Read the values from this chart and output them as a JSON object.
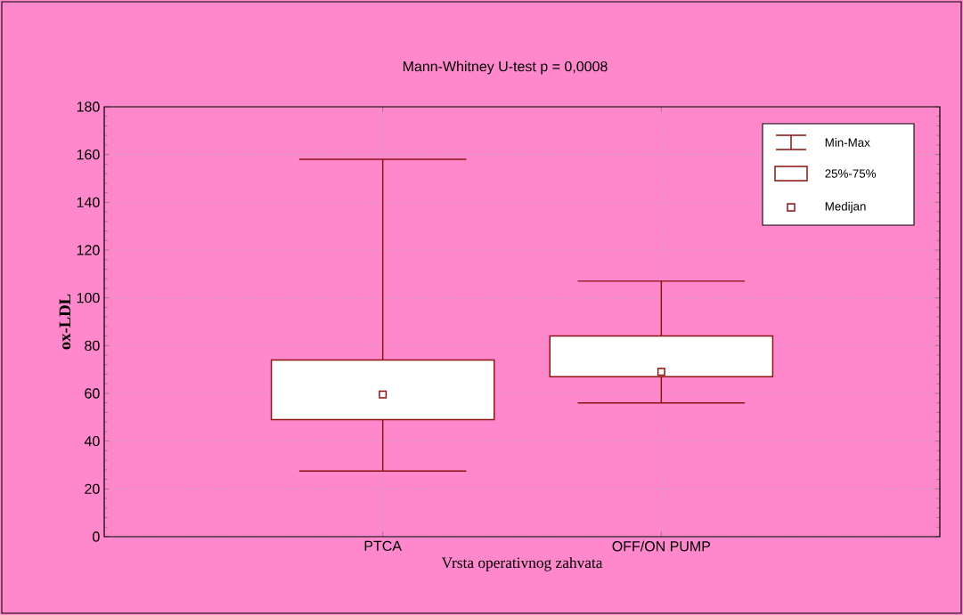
{
  "chart_data": {
    "type": "box",
    "title": "Mann-Whitney U-test   p = 0,0008",
    "xlabel": "Vrsta operativnog zahvata",
    "ylabel": "ox-LDL",
    "categories": [
      "PTCA",
      "OFF/ON PUMP"
    ],
    "boxes": [
      {
        "low": 27.5,
        "q1": 49,
        "median": 59.5,
        "q3": 74,
        "high": 158
      },
      {
        "low": 56,
        "q1": 67,
        "median": 69,
        "q3": 84,
        "high": 107
      }
    ],
    "color": "#8b1010",
    "ylim": [
      0,
      180
    ],
    "yticks": [
      0,
      20,
      40,
      60,
      80,
      100,
      120,
      140,
      160,
      180
    ],
    "grid": true,
    "marker": "square",
    "annotations": [
      "Min-Max",
      "25%-75%",
      "Medijan"
    ]
  }
}
